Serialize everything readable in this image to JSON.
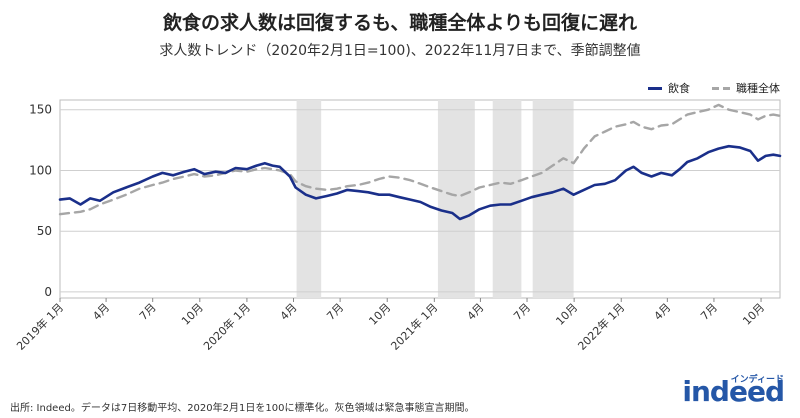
{
  "title": "飲食の求人数は回復するも、職種全体よりも回復に遅れ",
  "subtitle": "求人数トレンド（2020年2月1日=100)、2022年11月7日まで、季節調整値",
  "footer": "出所: Indeed。データは7日移動平均、2020年2月1日を100に標準化。灰色領域は緊急事態宣言期間。",
  "logo": {
    "word": "indeed",
    "kana": "インディード"
  },
  "colors": {
    "food": "#1a2f8a",
    "all": "#a6a6a6",
    "shade": "#e3e3e3"
  },
  "chart_data": {
    "type": "line",
    "title": "飲食の求人数は回復するも、職種全体よりも回復に遅れ",
    "xlabel": "",
    "ylabel": "",
    "ylim": [
      -5,
      158
    ],
    "yticks": [
      0,
      50,
      100,
      150
    ],
    "xlim": [
      "2019-01-01",
      "2022-11-07"
    ],
    "grid": "horizontal",
    "legend_position": "top-right",
    "xticks": [
      {
        "date": "2019-01-01",
        "label": "2019年 1月"
      },
      {
        "date": "2019-04-01",
        "label": "4月"
      },
      {
        "date": "2019-07-01",
        "label": "7月"
      },
      {
        "date": "2019-10-01",
        "label": "10月"
      },
      {
        "date": "2020-01-01",
        "label": "2020年 1月"
      },
      {
        "date": "2020-04-01",
        "label": "4月"
      },
      {
        "date": "2020-07-01",
        "label": "7月"
      },
      {
        "date": "2020-10-01",
        "label": "10月"
      },
      {
        "date": "2021-01-01",
        "label": "2021年 1月"
      },
      {
        "date": "2021-04-01",
        "label": "4月"
      },
      {
        "date": "2021-07-01",
        "label": "7月"
      },
      {
        "date": "2021-10-01",
        "label": "10月"
      },
      {
        "date": "2022-01-01",
        "label": "2022年 1月"
      },
      {
        "date": "2022-04-01",
        "label": "4月"
      },
      {
        "date": "2022-07-01",
        "label": "7月"
      },
      {
        "date": "2022-10-01",
        "label": "10月"
      }
    ],
    "shaded_periods": [
      {
        "start": "2020-04-07",
        "end": "2020-05-25"
      },
      {
        "start": "2021-01-08",
        "end": "2021-03-21"
      },
      {
        "start": "2021-04-25",
        "end": "2021-06-20"
      },
      {
        "start": "2021-07-12",
        "end": "2021-09-30"
      }
    ],
    "series": [
      {
        "name": "飲食",
        "style": "solid",
        "points": [
          [
            "2019-01-01",
            76
          ],
          [
            "2019-01-20",
            77
          ],
          [
            "2019-02-10",
            72
          ],
          [
            "2019-03-01",
            77
          ],
          [
            "2019-03-20",
            75
          ],
          [
            "2019-04-15",
            82
          ],
          [
            "2019-05-10",
            86
          ],
          [
            "2019-06-05",
            90
          ],
          [
            "2019-07-01",
            95
          ],
          [
            "2019-07-20",
            98
          ],
          [
            "2019-08-10",
            96
          ],
          [
            "2019-09-01",
            99
          ],
          [
            "2019-09-20",
            101
          ],
          [
            "2019-10-10",
            97
          ],
          [
            "2019-11-01",
            99
          ],
          [
            "2019-11-20",
            98
          ],
          [
            "2019-12-10",
            102
          ],
          [
            "2020-01-01",
            101
          ],
          [
            "2020-01-20",
            104
          ],
          [
            "2020-02-05",
            106
          ],
          [
            "2020-02-20",
            104
          ],
          [
            "2020-03-05",
            103
          ],
          [
            "2020-03-25",
            95
          ],
          [
            "2020-04-05",
            86
          ],
          [
            "2020-04-25",
            80
          ],
          [
            "2020-05-15",
            77
          ],
          [
            "2020-06-05",
            79
          ],
          [
            "2020-06-25",
            81
          ],
          [
            "2020-07-15",
            84
          ],
          [
            "2020-08-05",
            83
          ],
          [
            "2020-08-25",
            82
          ],
          [
            "2020-09-15",
            80
          ],
          [
            "2020-10-05",
            80
          ],
          [
            "2020-10-25",
            78
          ],
          [
            "2020-11-15",
            76
          ],
          [
            "2020-12-05",
            74
          ],
          [
            "2020-12-25",
            70
          ],
          [
            "2021-01-15",
            67
          ],
          [
            "2021-02-05",
            65
          ],
          [
            "2021-02-20",
            60
          ],
          [
            "2021-03-10",
            63
          ],
          [
            "2021-03-30",
            68
          ],
          [
            "2021-04-20",
            71
          ],
          [
            "2021-05-10",
            72
          ],
          [
            "2021-05-30",
            72
          ],
          [
            "2021-06-20",
            75
          ],
          [
            "2021-07-10",
            78
          ],
          [
            "2021-07-30",
            80
          ],
          [
            "2021-08-20",
            82
          ],
          [
            "2021-09-10",
            85
          ],
          [
            "2021-09-30",
            80
          ],
          [
            "2021-10-20",
            84
          ],
          [
            "2021-11-10",
            88
          ],
          [
            "2021-11-30",
            89
          ],
          [
            "2021-12-20",
            92
          ],
          [
            "2022-01-10",
            100
          ],
          [
            "2022-01-25",
            103
          ],
          [
            "2022-02-10",
            98
          ],
          [
            "2022-03-01",
            95
          ],
          [
            "2022-03-20",
            98
          ],
          [
            "2022-04-10",
            96
          ],
          [
            "2022-04-25",
            101
          ],
          [
            "2022-05-10",
            107
          ],
          [
            "2022-05-30",
            110
          ],
          [
            "2022-06-20",
            115
          ],
          [
            "2022-07-10",
            118
          ],
          [
            "2022-07-30",
            120
          ],
          [
            "2022-08-20",
            119
          ],
          [
            "2022-09-10",
            116
          ],
          [
            "2022-09-25",
            108
          ],
          [
            "2022-10-10",
            112
          ],
          [
            "2022-10-25",
            113
          ],
          [
            "2022-11-07",
            112
          ]
        ]
      },
      {
        "name": "職種全体",
        "style": "dashed",
        "points": [
          [
            "2019-01-01",
            64
          ],
          [
            "2019-01-20",
            65
          ],
          [
            "2019-02-10",
            66
          ],
          [
            "2019-03-01",
            68
          ],
          [
            "2019-03-20",
            72
          ],
          [
            "2019-04-15",
            76
          ],
          [
            "2019-05-10",
            80
          ],
          [
            "2019-06-05",
            85
          ],
          [
            "2019-07-01",
            88
          ],
          [
            "2019-07-20",
            90
          ],
          [
            "2019-08-10",
            93
          ],
          [
            "2019-09-01",
            95
          ],
          [
            "2019-09-20",
            97
          ],
          [
            "2019-10-10",
            95
          ],
          [
            "2019-11-01",
            96
          ],
          [
            "2019-11-20",
            98
          ],
          [
            "2019-12-10",
            100
          ],
          [
            "2020-01-01",
            99
          ],
          [
            "2020-01-20",
            101
          ],
          [
            "2020-02-05",
            102
          ],
          [
            "2020-02-20",
            101
          ],
          [
            "2020-03-05",
            100
          ],
          [
            "2020-03-25",
            97
          ],
          [
            "2020-04-05",
            91
          ],
          [
            "2020-04-25",
            87
          ],
          [
            "2020-05-15",
            85
          ],
          [
            "2020-06-05",
            84
          ],
          [
            "2020-06-25",
            85
          ],
          [
            "2020-07-15",
            87
          ],
          [
            "2020-08-05",
            88
          ],
          [
            "2020-08-25",
            90
          ],
          [
            "2020-09-15",
            93
          ],
          [
            "2020-10-05",
            95
          ],
          [
            "2020-10-25",
            94
          ],
          [
            "2020-11-15",
            92
          ],
          [
            "2020-12-05",
            89
          ],
          [
            "2020-12-25",
            86
          ],
          [
            "2021-01-15",
            83
          ],
          [
            "2021-02-05",
            80
          ],
          [
            "2021-02-20",
            79
          ],
          [
            "2021-03-10",
            82
          ],
          [
            "2021-03-30",
            86
          ],
          [
            "2021-04-20",
            88
          ],
          [
            "2021-05-10",
            90
          ],
          [
            "2021-05-30",
            89
          ],
          [
            "2021-06-20",
            92
          ],
          [
            "2021-07-10",
            95
          ],
          [
            "2021-07-30",
            98
          ],
          [
            "2021-08-20",
            104
          ],
          [
            "2021-09-10",
            110
          ],
          [
            "2021-09-30",
            106
          ],
          [
            "2021-10-20",
            118
          ],
          [
            "2021-11-10",
            128
          ],
          [
            "2021-11-30",
            132
          ],
          [
            "2021-12-20",
            136
          ],
          [
            "2022-01-10",
            138
          ],
          [
            "2022-01-25",
            140
          ],
          [
            "2022-02-10",
            136
          ],
          [
            "2022-03-01",
            134
          ],
          [
            "2022-03-20",
            137
          ],
          [
            "2022-04-10",
            138
          ],
          [
            "2022-04-25",
            142
          ],
          [
            "2022-05-10",
            146
          ],
          [
            "2022-05-30",
            148
          ],
          [
            "2022-06-20",
            150
          ],
          [
            "2022-07-10",
            154
          ],
          [
            "2022-07-30",
            150
          ],
          [
            "2022-08-20",
            148
          ],
          [
            "2022-09-10",
            146
          ],
          [
            "2022-09-25",
            142
          ],
          [
            "2022-10-10",
            145
          ],
          [
            "2022-10-25",
            146
          ],
          [
            "2022-11-07",
            145
          ]
        ]
      }
    ]
  }
}
